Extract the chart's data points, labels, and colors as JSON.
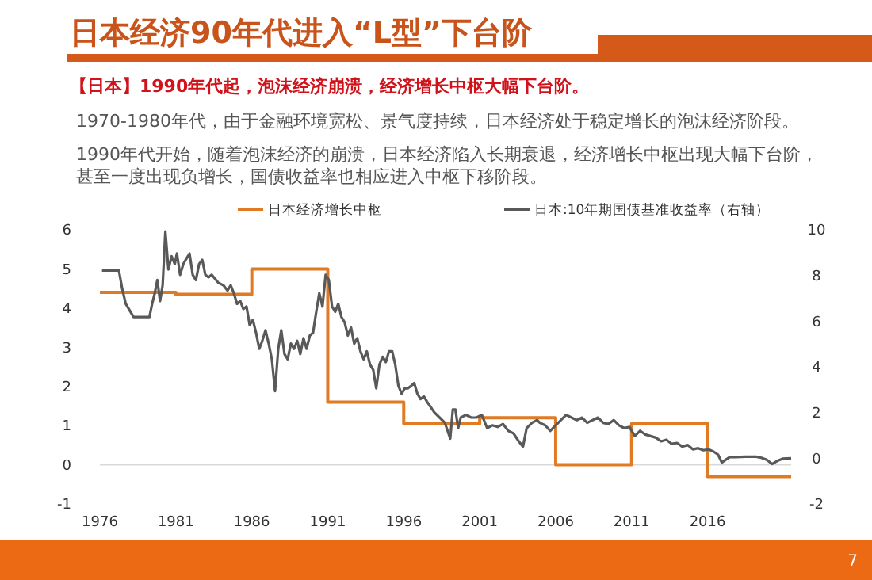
{
  "chart_data": {
    "type": "line",
    "title": "日本经济90年代进入“L型”下台阶",
    "annotations": [
      "【日本】1990年代起，泡沫经济崩溃，经济增长中枢大幅下台阶。",
      "1970-1980年代，由于金融环境宽松、景气度持续，日本经济处于稳定增长的泡沫经济阶段。",
      "1990年代开始，随着泡沫经济的崩溃，日本经济陷入长期衰退，经济增长中枢出现大幅下台阶，甚至一度出现负增长，国债收益率也相应进入中枢下移阶段。",
      "7"
    ],
    "xlim": [
      1976,
      2021.5
    ],
    "xticks": [
      1976,
      1981,
      1986,
      1991,
      1996,
      2001,
      2006,
      2011,
      2016
    ],
    "ylim": [
      -1,
      6
    ],
    "yticks": [
      -1,
      0,
      1,
      2,
      3,
      4,
      5,
      6
    ],
    "y2lim": [
      -2,
      10
    ],
    "y2ticks": [
      -2,
      0,
      2,
      4,
      6,
      8,
      10
    ],
    "legend": "top",
    "grid": false,
    "ref_lines": [
      {
        "axis": "y",
        "value": 0,
        "color": "#d9d9d9"
      }
    ],
    "series": [
      {
        "name": "日本经济增长中枢",
        "type": "step",
        "color": "#e07b24",
        "x": [
          1976,
          1981,
          1986,
          1991,
          1996,
          2001,
          2006,
          2011,
          2016,
          2021.5
        ],
        "values": [
          4.4,
          4.35,
          5.0,
          1.6,
          1.05,
          1.2,
          0,
          1.05,
          -0.3,
          -0.3
        ]
      },
      {
        "name": "日本:10年期国债基准收益率（右轴）",
        "type": "line",
        "axis": "y2",
        "color": "#595959",
        "x": [
          1976.14,
          1977.25,
          1977.46,
          1977.7,
          1978.22,
          1979.26,
          1979.44,
          1979.61,
          1979.78,
          1979.96,
          1980.13,
          1980.31,
          1980.51,
          1980.72,
          1980.93,
          1981.07,
          1981.28,
          1981.49,
          1981.69,
          1981.9,
          1982.11,
          1982.32,
          1982.53,
          1982.74,
          1982.94,
          1983.15,
          1983.36,
          1983.78,
          1984.13,
          1984.4,
          1984.61,
          1984.82,
          1985.03,
          1985.24,
          1985.44,
          1985.65,
          1985.86,
          1986.07,
          1986.28,
          1986.49,
          1986.69,
          1986.9,
          1987.11,
          1987.32,
          1987.53,
          1987.74,
          1987.94,
          1988.15,
          1988.36,
          1988.57,
          1988.78,
          1988.99,
          1989.19,
          1989.4,
          1989.61,
          1989.82,
          1990.03,
          1990.24,
          1990.44,
          1990.65,
          1990.86,
          1991.07,
          1991.28,
          1991.49,
          1991.69,
          1991.9,
          1992.11,
          1992.32,
          1992.53,
          1992.74,
          1992.94,
          1993.15,
          1993.36,
          1993.57,
          1993.78,
          1993.99,
          1994.19,
          1994.4,
          1994.61,
          1994.82,
          1995.03,
          1995.24,
          1995.44,
          1995.65,
          1995.86,
          1996.07,
          1996.28,
          1996.49,
          1996.69,
          1996.9,
          1997.11,
          1997.32,
          1997.53,
          1998.01,
          1998.36,
          1998.71,
          1999.06,
          1999.23,
          1999.4,
          1999.58,
          1999.75,
          2000.1,
          2000.44,
          2000.79,
          2001.14,
          2001.49,
          2001.83,
          2002.18,
          2002.53,
          2002.88,
          2003.22,
          2003.57,
          2003.85,
          2004.09,
          2004.44,
          2004.78,
          2004.96,
          2005.31,
          2005.65,
          2006.0,
          2006.35,
          2006.69,
          2007.04,
          2007.39,
          2007.74,
          2008.08,
          2008.43,
          2008.78,
          2009.13,
          2009.47,
          2009.82,
          2010.17,
          2010.51,
          2010.86,
          2011.21,
          2011.56,
          2011.9,
          2012.25,
          2012.6,
          2012.94,
          2013.29,
          2013.64,
          2013.99,
          2014.33,
          2014.68,
          2015.03,
          2015.38,
          2015.72,
          2016.07,
          2016.42,
          2016.69,
          2016.94,
          2017.18,
          2017.46,
          2017.81,
          2018.5,
          2019.19,
          2019.54,
          2019.89,
          2020.24,
          2020.58,
          2020.93,
          2021.5
        ],
        "values": [
          8.22,
          8.22,
          7.45,
          6.76,
          6.18,
          6.18,
          6.76,
          7.22,
          7.8,
          6.88,
          7.57,
          9.93,
          8.26,
          8.84,
          8.5,
          8.96,
          8.03,
          8.5,
          8.73,
          8.96,
          8.03,
          7.8,
          8.5,
          8.68,
          8.03,
          7.92,
          8.03,
          7.69,
          7.57,
          7.34,
          7.57,
          7.22,
          6.76,
          6.88,
          6.53,
          6.64,
          5.83,
          6.06,
          5.49,
          4.79,
          5.14,
          5.6,
          5.02,
          4.33,
          2.94,
          4.79,
          5.6,
          4.56,
          4.33,
          5.02,
          4.79,
          5.14,
          4.56,
          5.25,
          4.79,
          5.37,
          5.49,
          6.41,
          7.22,
          6.64,
          8.03,
          7.8,
          6.64,
          6.41,
          6.76,
          6.18,
          5.95,
          5.37,
          5.72,
          5.02,
          5.25,
          4.68,
          4.33,
          4.68,
          4.1,
          3.87,
          3.06,
          4.1,
          4.44,
          4.21,
          4.68,
          4.68,
          4.1,
          3.17,
          2.82,
          3.06,
          3.06,
          3.17,
          3.29,
          2.82,
          2.59,
          2.71,
          2.48,
          2.01,
          1.78,
          1.55,
          0.86,
          2.13,
          2.13,
          1.32,
          1.78,
          1.9,
          1.78,
          1.78,
          1.9,
          1.32,
          1.44,
          1.37,
          1.5,
          1.2,
          1.09,
          0.74,
          0.51,
          1.32,
          1.55,
          1.67,
          1.55,
          1.44,
          1.2,
          1.44,
          1.67,
          1.9,
          1.78,
          1.67,
          1.78,
          1.55,
          1.67,
          1.78,
          1.55,
          1.5,
          1.67,
          1.44,
          1.32,
          1.37,
          0.97,
          1.2,
          1.04,
          0.97,
          0.9,
          0.74,
          0.81,
          0.63,
          0.67,
          0.51,
          0.58,
          0.39,
          0.44,
          0.35,
          0.39,
          0.28,
          0.16,
          -0.19,
          -0.07,
          0.05,
          0.05,
          0.07,
          0.07,
          0.02,
          -0.07,
          -0.25,
          -0.12,
          -0.02,
          0
        ]
      }
    ]
  }
}
